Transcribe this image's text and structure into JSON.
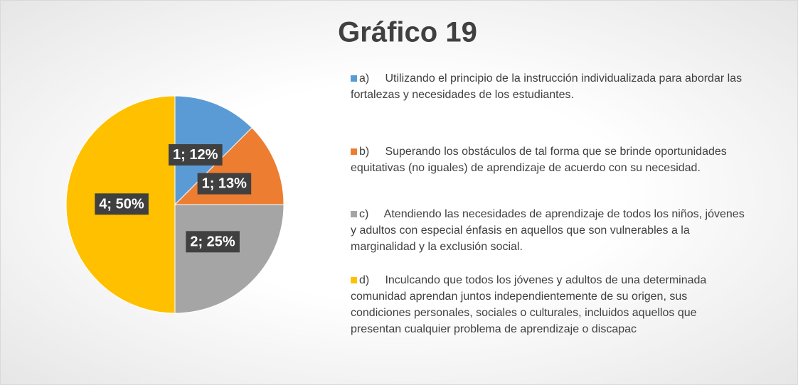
{
  "chart_data": {
    "type": "pie",
    "title": "Gráfico 19",
    "categories": [
      "a)     Utilizando el principio de la instrucción individualizada para abordar las fortalezas y necesidades de los estudiantes.",
      "b)     Superando los obstáculos de tal forma que se brinde oportunidades equitativas (no iguales) de aprendizaje de acuerdo con su necesidad.",
      "c)     Atendiendo las necesidades de aprendizaje de todos los niños, jóvenes y adultos con especial énfasis en aquellos que son vulnerables a la marginalidad y la exclusión social.",
      "d)     Inculcando que todos los jóvenes y adultos de una determinada comunidad aprendan juntos independientemente de su origen, sus condiciones personales, sociales o culturales, incluidos aquellos que presentan cualquier problema de aprendizaje o discapac"
    ],
    "values": [
      1,
      1,
      2,
      4
    ],
    "value_labels": [
      "1; 12%",
      "1; 13%",
      "2; 25%",
      "4; 50%"
    ],
    "colors": [
      "#5b9bd5",
      "#ed7d31",
      "#a5a5a5",
      "#ffc000"
    ],
    "legend": "right"
  }
}
